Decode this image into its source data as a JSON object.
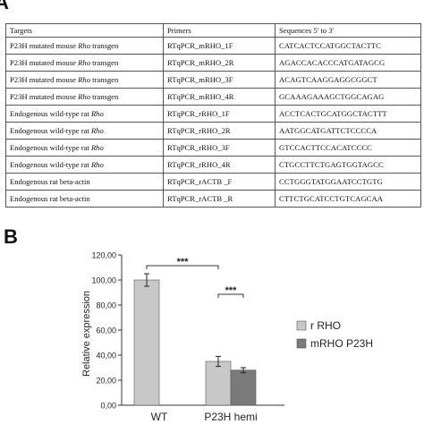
{
  "panel_a": {
    "letter": "A",
    "headers": [
      "Targets",
      "Primers",
      "Sequences 5' to 3'"
    ],
    "rows": [
      {
        "target_prefix": "P23H mutated mouse ",
        "target_italic": "Rho",
        "target_suffix": " transgen",
        "primer": "RTqPCR_mRHO_1F",
        "sequence": "CATCACTCCATGGCTACTTC"
      },
      {
        "target_prefix": "P23H mutated mouse ",
        "target_italic": "Rho",
        "target_suffix": " transgen",
        "primer": "RTqPCR_mRHO_2R",
        "sequence": "AGACCACACCCATGATAGCG"
      },
      {
        "target_prefix": "P23H mutated mouse ",
        "target_italic": "Rho",
        "target_suffix": " transgen",
        "primer": "RTqPCR_mRHO_3F",
        "sequence": "ACAGTCAAGGAGGCGGCT"
      },
      {
        "target_prefix": "P23H mutated mouse ",
        "target_italic": "Rho",
        "target_suffix": " transgen",
        "primer": "RTqPCR_mRHO_4R",
        "sequence": "GCAAAGAAAGCTGGCAGAG"
      },
      {
        "target_prefix": "Endogenous wild-type rat ",
        "target_italic": "Rho",
        "target_suffix": "",
        "primer": "RTqPCR_rRHO_1F",
        "sequence": "ACCTCACTGCATGGCTACTTT"
      },
      {
        "target_prefix": "Endogenous wild-type rat ",
        "target_italic": "Rho",
        "target_suffix": "",
        "primer": "RTqPCR_rRHO_2R",
        "sequence": "AATGGCATGATTCTCCCCA"
      },
      {
        "target_prefix": "Endogenous wild-type rat ",
        "target_italic": "Rho",
        "target_suffix": "",
        "primer": "RTqPCR_rRHO_3F",
        "sequence": "GTCCACTTCCACATCCCC"
      },
      {
        "target_prefix": "Endogenous wild-type rat ",
        "target_italic": "Rho",
        "target_suffix": "",
        "primer": "RTqPCR_rRHO_4R",
        "sequence": "CTGCCTTCTGAGTGGTAGCC"
      },
      {
        "target_prefix": "Endogenous rat beta-actin",
        "target_italic": "",
        "target_suffix": "",
        "primer": "RTqPCR_rACTB _F",
        "sequence": "CCTGGGTATGGAATCCTGTG"
      },
      {
        "target_prefix": "Endogenous rat beta-actin",
        "target_italic": "",
        "target_suffix": "",
        "primer": "RTqPCR_rACTB _R",
        "sequence": "CTTCTGCATCCTGTCAGCAA"
      }
    ]
  },
  "panel_b": {
    "letter": "B"
  },
  "chart_data": {
    "type": "bar",
    "categories": [
      "WT",
      "P23H hemi"
    ],
    "series": [
      {
        "name": "r RHO",
        "values": [
          100.0,
          35.0
        ],
        "errors": [
          5.0,
          4.0
        ],
        "color": "#c8c8c8"
      },
      {
        "name": "mRHO P23H",
        "values": [
          0.0,
          28.0
        ],
        "errors": [
          0.0,
          2.0
        ],
        "color": "#7a7a7a"
      }
    ],
    "ylabel": "Relative expression",
    "xlabel": "",
    "ylim": [
      0,
      120
    ],
    "yticks": [
      0,
      20,
      40,
      60,
      80,
      100,
      120
    ],
    "ytick_labels": [
      "0,00",
      "20,00",
      "40,00",
      "60,00",
      "80,00",
      "100,00",
      "120,00"
    ],
    "legend_position": "right",
    "grid": false,
    "significance": [
      {
        "label": "***",
        "between": "WT r RHO vs P23H hemi r RHO"
      },
      {
        "label": "***",
        "between": "P23H hemi r RHO vs P23H hemi mRHO P23H"
      }
    ]
  }
}
